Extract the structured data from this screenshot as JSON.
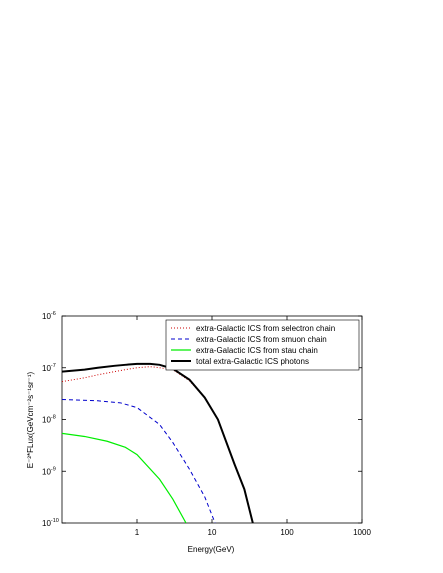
{
  "chart_data": {
    "type": "line",
    "x_label": "Energy(GeV)",
    "y_label": "E⁻²*FLux(GeVcm⁻²s⁻¹sr⁻¹)",
    "log_x": true,
    "log_y": true,
    "xlim": [
      0.1,
      1000
    ],
    "xticks": [
      1,
      10,
      100,
      1000
    ],
    "ylim": [
      1e-10,
      1e-06
    ],
    "yticks": [
      {
        "value": 1e-10,
        "label": "10",
        "exponent": "-10"
      },
      {
        "value": 1e-09,
        "label": "10",
        "exponent": "-9"
      },
      {
        "value": 1e-08,
        "label": "10",
        "exponent": "-8"
      },
      {
        "value": 1e-07,
        "label": "10",
        "exponent": "-7"
      },
      {
        "value": 1e-06,
        "label": "10",
        "exponent": "-6"
      }
    ],
    "legend": "upper right",
    "series": [
      {
        "name": "extra-Galactic ICS from selectron chain",
        "color": "#cc0000",
        "style": "dotted",
        "x": [
          0.1,
          0.2,
          0.3,
          0.5,
          0.7,
          1,
          1.5,
          2,
          3,
          5,
          8,
          12,
          20,
          27,
          35
        ],
        "values": [
          5.4e-08,
          6.4e-08,
          7.3e-08,
          8.4e-08,
          9.2e-08,
          1e-07,
          1.05e-07,
          1e-07,
          9.2e-08,
          5.6e-08,
          2.65e-08,
          1e-08,
          1.36e-09,
          4.5e-10,
          1e-10
        ]
      },
      {
        "name": "extra-Galactic ICS from smuon chain",
        "color": "#0000cc",
        "style": "dashed",
        "x": [
          0.1,
          0.3,
          0.6,
          1,
          2,
          3,
          5,
          8,
          11
        ],
        "values": [
          2.43e-08,
          2.3e-08,
          2.1e-08,
          1.7e-08,
          8e-09,
          3.6e-09,
          1.1e-09,
          3.2e-10,
          1e-10
        ]
      },
      {
        "name": "extra-Galactic ICS from stau chain",
        "color": "#00ee00",
        "style": "solid",
        "x": [
          0.1,
          0.2,
          0.4,
          0.7,
          1,
          2,
          3,
          4.5
        ],
        "values": [
          5.4e-09,
          4.7e-09,
          3.8e-09,
          2.9e-09,
          2.1e-09,
          7e-10,
          2.9e-10,
          1e-10
        ]
      },
      {
        "name": "total extra-Galactic ICS photons",
        "color": "#000000",
        "style": "thick",
        "x": [
          0.1,
          0.2,
          0.3,
          0.5,
          0.7,
          1,
          1.5,
          2,
          3,
          5,
          8,
          12,
          20,
          27,
          35
        ],
        "values": [
          8.4e-08,
          9.2e-08,
          1e-07,
          1.09e-07,
          1.14e-07,
          1.19e-07,
          1.19e-07,
          1.14e-07,
          9.6e-08,
          5.9e-08,
          2.65e-08,
          1e-08,
          1.36e-09,
          4.5e-10,
          1e-10
        ]
      }
    ]
  }
}
